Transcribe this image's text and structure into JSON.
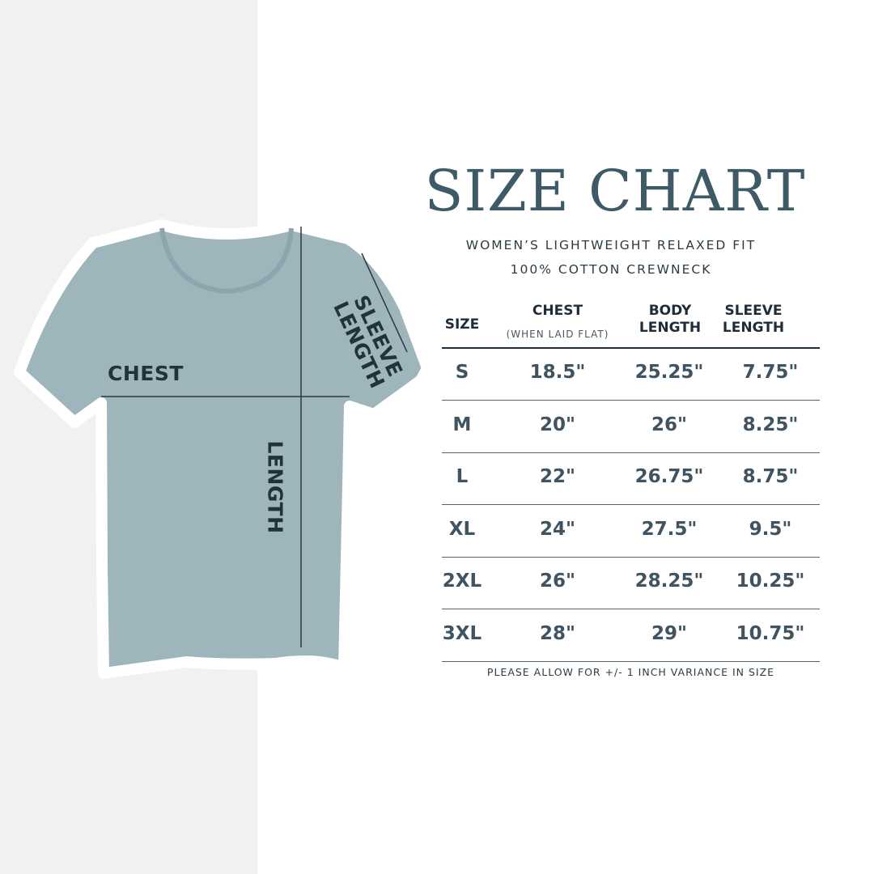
{
  "title": "SIZE CHART",
  "subtitle_line1": "WOMEN’S LIGHTWEIGHT RELAXED FIT",
  "subtitle_line2": "100% COTTON CREWNECK",
  "colors": {
    "title": "#3d5a66",
    "shirt": "#9fb5bc",
    "panel": "#f1f1f1",
    "text": "#3f5360"
  },
  "diagram_labels": {
    "chest": "CHEST",
    "sleeve_line1": "SLEEVE",
    "sleeve_line2": "LENGTH",
    "length": "LENGTH"
  },
  "table": {
    "headers": {
      "size": "SIZE",
      "chest": "CHEST",
      "chest_note": "(WHEN LAID FLAT)",
      "body_1": "BODY",
      "body_2": "LENGTH",
      "sleeve_1": "SLEEVE",
      "sleeve_2": "LENGTH"
    },
    "rows": [
      {
        "size": "S",
        "chest": "18.5\"",
        "body": "25.25\"",
        "sleeve": "7.75\""
      },
      {
        "size": "M",
        "chest": "20\"",
        "body": "26\"",
        "sleeve": "8.25\""
      },
      {
        "size": "L",
        "chest": "22\"",
        "body": "26.75\"",
        "sleeve": "8.75\""
      },
      {
        "size": "XL",
        "chest": "24\"",
        "body": "27.5\"",
        "sleeve": "9.5\""
      },
      {
        "size": "2XL",
        "chest": "26\"",
        "body": "28.25\"",
        "sleeve": "10.25\""
      },
      {
        "size": "3XL",
        "chest": "28\"",
        "body": "29\"",
        "sleeve": "10.75\""
      }
    ]
  },
  "footnote": "PLEASE ALLOW FOR +/- 1 INCH VARIANCE IN SIZE"
}
